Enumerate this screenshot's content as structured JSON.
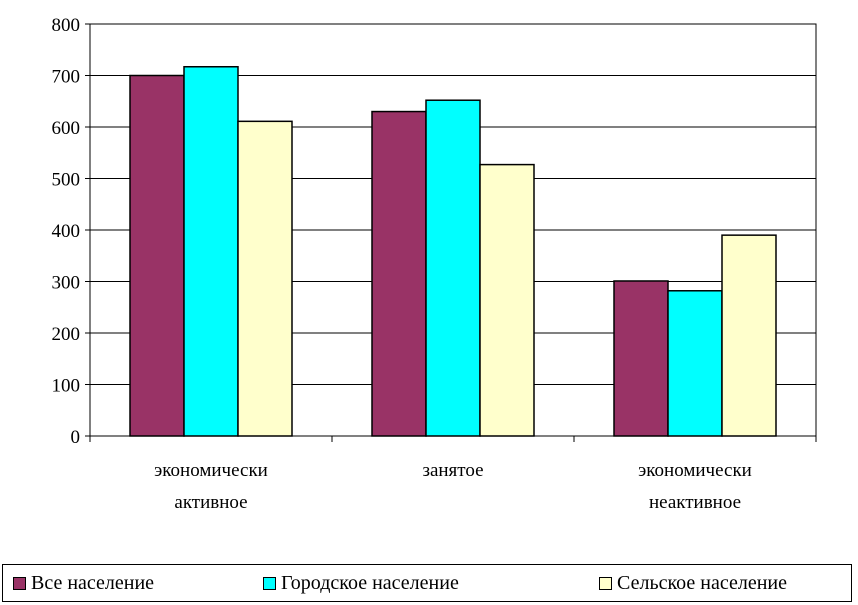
{
  "chart_data": {
    "type": "bar",
    "categories": [
      [
        "экономически",
        "активное"
      ],
      [
        "занятое"
      ],
      [
        "экономически",
        "неактивное"
      ]
    ],
    "series": [
      {
        "name": "Все население",
        "color": "#993366",
        "values": [
          700,
          630,
          301
        ]
      },
      {
        "name": "Городское население",
        "color": "#00FFFF",
        "values": [
          717,
          652,
          282
        ]
      },
      {
        "name": "Сельское население",
        "color": "#FFFFCC",
        "values": [
          611,
          527,
          390
        ]
      }
    ],
    "ylim": [
      0,
      800
    ],
    "yticks": [
      0,
      100,
      200,
      300,
      400,
      500,
      600,
      700,
      800
    ],
    "grid": true,
    "legend_position": "bottom"
  }
}
